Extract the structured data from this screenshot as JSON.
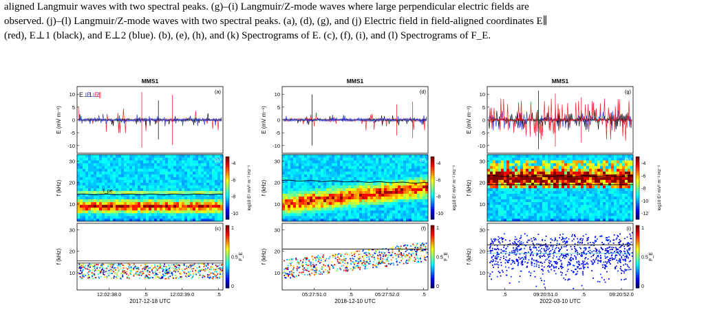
{
  "caption": {
    "line1": "aligned Langmuir waves with two spectral peaks. (g)–(i) Langmuir/Z-mode waves where large perpendicular electric fields are",
    "line2": "observed. (j)–(l) Langmuir/Z-mode waves with two spectral peaks. (a), (d), (g), and (j) Electric field in field-aligned coordinates E∥",
    "line3": "(red), E⊥1 (black), and E⊥2 (blue). (b), (e), (h), and (k) Spectrograms of E. (c), (f), (i), and (l) Spectrograms of F_E."
  },
  "colors": {
    "e_par": "#e8222a",
    "e_perp1": "#111111",
    "e_perp2": "#2b3be0"
  },
  "columns": [
    {
      "title": "MMS1",
      "panel_labels": [
        "(a)",
        "(b)",
        "(c)"
      ],
      "time_ticks": [
        "12:02:38.0",
        ".5",
        "12:02:39.0",
        ".5"
      ],
      "date": "2017-12-18 UTC",
      "legend": [
        "E⊥1",
        "E⊥2",
        "E∥"
      ],
      "line_label": "f_pe",
      "colorbar_e": {
        "ticks": [
          "-4",
          "-6",
          "-8",
          "-10"
        ],
        "label": "log10 E² mV² m⁻² Hz⁻¹"
      },
      "colorbar_f": {
        "ticks": [
          "1",
          "0.5",
          "0"
        ],
        "label": "F_E"
      }
    },
    {
      "title": "MMS1",
      "panel_labels": [
        "(d)",
        "(e)",
        "(f)"
      ],
      "time_ticks": [
        "05:27:51.0",
        ".5",
        "05:27:52.0",
        ".5"
      ],
      "date": "2018-12-10 UTC",
      "colorbar_e": {
        "ticks": [
          "-4",
          "-6",
          "-8",
          "-10"
        ],
        "label": "log10 E² mV² m⁻² Hz⁻¹"
      },
      "colorbar_f": {
        "ticks": [
          "1",
          "0.5",
          "0"
        ],
        "label": "F_E"
      }
    },
    {
      "title": "MMS1",
      "panel_labels": [
        "(g)",
        "(h)",
        "(i)"
      ],
      "time_ticks": [
        ".5",
        "09:20:51.0",
        ".5",
        "09:20:52.0"
      ],
      "date": "2022-03-10 UTC",
      "colorbar_e": {
        "ticks": [
          "-4",
          "-6",
          "-8",
          "-10",
          "-12"
        ],
        "label": "log10 E² mV² m⁻² Hz⁻¹"
      },
      "colorbar_f": {
        "ticks": [
          "1",
          "0.5",
          "0"
        ],
        "label": "F_E"
      }
    }
  ],
  "axes": {
    "e_ylabel": "E (mV m⁻¹)",
    "f_ylabel": "f (kHz)",
    "e_ticks": [
      "10",
      "5",
      "0",
      "-5",
      "-10"
    ],
    "f_ticks": [
      "30",
      "20",
      "10"
    ]
  }
}
